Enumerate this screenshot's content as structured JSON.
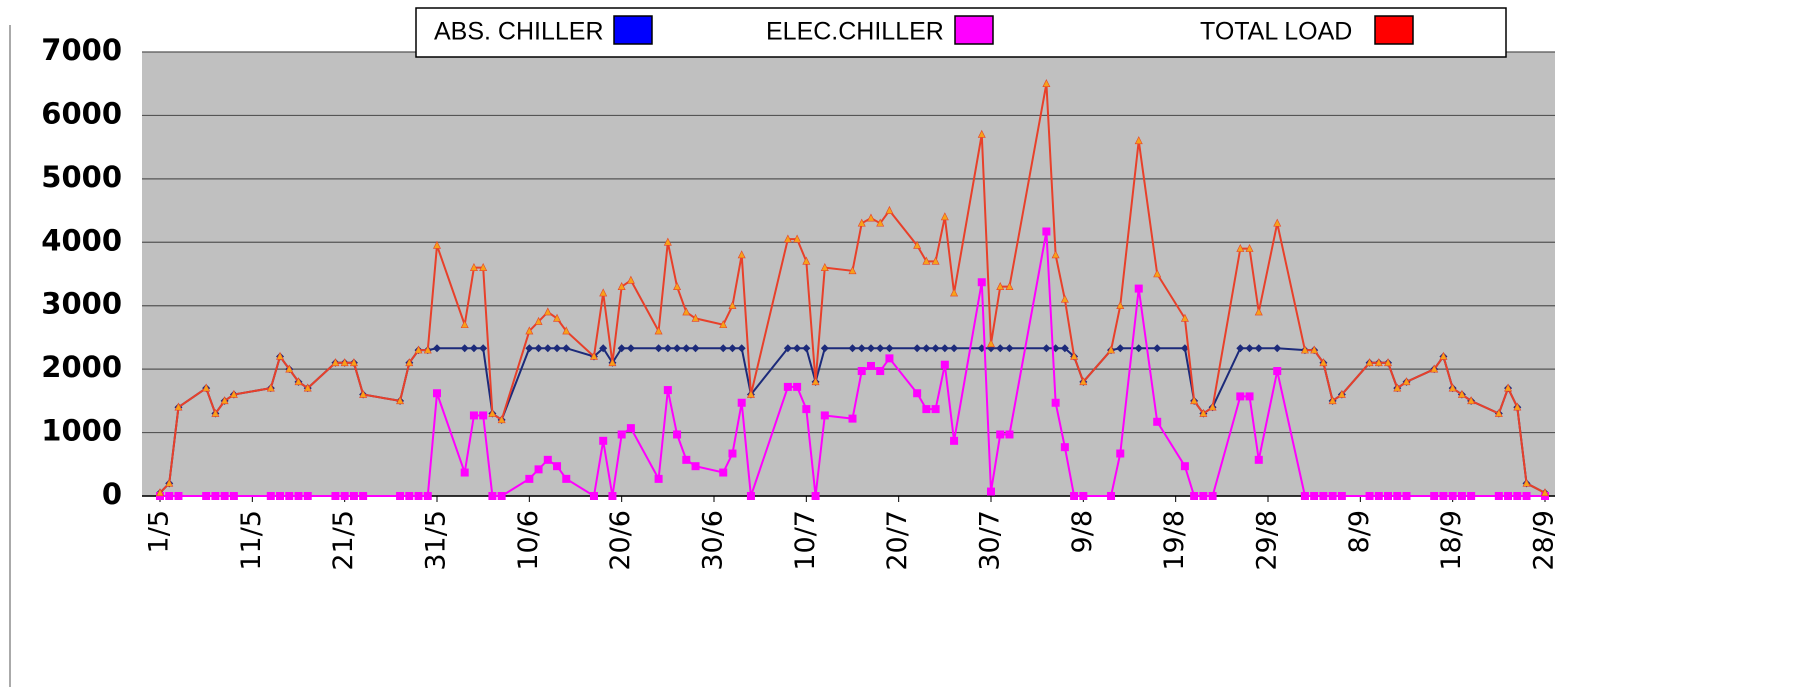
{
  "chart_data": {
    "type": "line",
    "x": [
      0,
      1,
      2,
      5,
      6,
      7,
      8,
      12,
      13,
      14,
      15,
      16,
      19,
      20,
      21,
      22,
      26,
      27,
      28,
      29,
      30,
      33,
      34,
      35,
      36,
      37,
      40,
      41,
      42,
      43,
      44,
      47,
      48,
      49,
      50,
      51,
      54,
      55,
      56,
      57,
      58,
      61,
      62,
      63,
      64,
      68,
      69,
      70,
      71,
      72,
      75,
      76,
      77,
      78,
      79,
      82,
      83,
      84,
      85,
      86,
      89,
      90,
      91,
      92,
      96,
      97,
      98,
      99,
      100,
      103,
      104,
      106,
      108,
      111,
      112,
      113,
      114,
      117,
      118,
      119,
      121,
      124,
      125,
      126,
      127,
      128,
      131,
      132,
      133,
      134,
      135,
      138,
      139,
      140,
      141,
      142,
      145,
      146,
      147,
      148,
      150
    ],
    "series": [
      {
        "name": "ABS. CHILLER",
        "color": "#0000ff",
        "line_color": "#1c2a7a",
        "values": [
          50,
          200,
          1400,
          1700,
          1300,
          1500,
          1600,
          1700,
          2200,
          2000,
          1800,
          1700,
          2100,
          2100,
          2100,
          1600,
          1500,
          2100,
          2300,
          2300,
          2330,
          2330,
          2330,
          2330,
          1300,
          1200,
          2330,
          2330,
          2330,
          2330,
          2330,
          2200,
          2330,
          2100,
          2330,
          2330,
          2330,
          2330,
          2330,
          2330,
          2330,
          2330,
          2330,
          2330,
          1600,
          2330,
          2330,
          2330,
          1800,
          2330,
          2330,
          2330,
          2330,
          2330,
          2330,
          2330,
          2330,
          2330,
          2330,
          2330,
          2330,
          2330,
          2330,
          2330,
          2330,
          2330,
          2330,
          2200,
          1800,
          2300,
          2330,
          2330,
          2330,
          2330,
          1500,
          1300,
          1400,
          2330,
          2330,
          2330,
          2330,
          2300,
          2300,
          2100,
          1500,
          1600,
          2100,
          2100,
          2100,
          1700,
          1800,
          2000,
          2200,
          1700,
          1600,
          1500,
          1300,
          1700,
          1400,
          200,
          50
        ]
      },
      {
        "name": "ELEC.CHILLER",
        "color": "#ff00ff",
        "line_color": "#ff00ff",
        "values": [
          0,
          0,
          0,
          0,
          0,
          0,
          0,
          0,
          0,
          0,
          0,
          0,
          0,
          0,
          0,
          0,
          0,
          0,
          0,
          0,
          1620,
          370,
          1270,
          1270,
          0,
          0,
          270,
          420,
          570,
          470,
          270,
          0,
          870,
          0,
          970,
          1070,
          270,
          1670,
          970,
          570,
          470,
          370,
          670,
          1470,
          0,
          1720,
          1720,
          1370,
          0,
          1270,
          1220,
          1970,
          2050,
          1970,
          2170,
          1620,
          1370,
          1370,
          2070,
          870,
          3370,
          70,
          970,
          970,
          4170,
          1470,
          770,
          0,
          0,
          0,
          670,
          3270,
          1170,
          470,
          0,
          0,
          0,
          1570,
          1570,
          570,
          1970,
          0,
          0,
          0,
          0,
          0,
          0,
          0,
          0,
          0,
          0,
          0,
          0,
          0,
          0,
          0,
          0,
          0,
          0,
          0,
          0
        ]
      },
      {
        "name": "TOTAL LOAD",
        "color": "#ff0000",
        "line_color": "#e8402a",
        "values": [
          50,
          200,
          1400,
          1700,
          1300,
          1500,
          1600,
          1700,
          2200,
          2000,
          1800,
          1700,
          2100,
          2100,
          2100,
          1600,
          1500,
          2100,
          2300,
          2300,
          3950,
          2700,
          3600,
          3600,
          1300,
          1200,
          2600,
          2750,
          2900,
          2800,
          2600,
          2200,
          3200,
          2100,
          3300,
          3400,
          2600,
          4000,
          3300,
          2900,
          2800,
          2700,
          3000,
          3800,
          1600,
          4050,
          4050,
          3700,
          1800,
          3600,
          3550,
          4300,
          4380,
          4300,
          4500,
          3950,
          3700,
          3700,
          4400,
          3200,
          5700,
          2400,
          3300,
          3300,
          6500,
          3800,
          3100,
          2200,
          1800,
          2300,
          3000,
          5600,
          3500,
          2800,
          1500,
          1300,
          1400,
          3900,
          3900,
          2900,
          4300,
          2300,
          2300,
          2100,
          1500,
          1600,
          2100,
          2100,
          2100,
          1700,
          1800,
          2000,
          2200,
          1700,
          1600,
          1500,
          1300,
          1700,
          1400,
          200,
          50
        ]
      }
    ],
    "xlim": [
      0,
      150
    ],
    "xticks": [
      {
        "value": 0,
        "label": "1/5"
      },
      {
        "value": 10,
        "label": "11/5"
      },
      {
        "value": 20,
        "label": "21/5"
      },
      {
        "value": 30,
        "label": "31/5"
      },
      {
        "value": 40,
        "label": "10/6"
      },
      {
        "value": 50,
        "label": "20/6"
      },
      {
        "value": 60,
        "label": "30/6"
      },
      {
        "value": 70,
        "label": "10/7"
      },
      {
        "value": 80,
        "label": "20/7"
      },
      {
        "value": 90,
        "label": "30/7"
      },
      {
        "value": 100,
        "label": "9/8"
      },
      {
        "value": 110,
        "label": "19/8"
      },
      {
        "value": 120,
        "label": "29/8"
      },
      {
        "value": 130,
        "label": "8/9"
      },
      {
        "value": 140,
        "label": "18/9"
      },
      {
        "value": 150,
        "label": "28/9"
      }
    ],
    "ylim": [
      0,
      7000
    ],
    "yticks": [
      0,
      1000,
      2000,
      3000,
      4000,
      5000,
      6000,
      7000
    ],
    "grid": true,
    "legend": "top"
  }
}
